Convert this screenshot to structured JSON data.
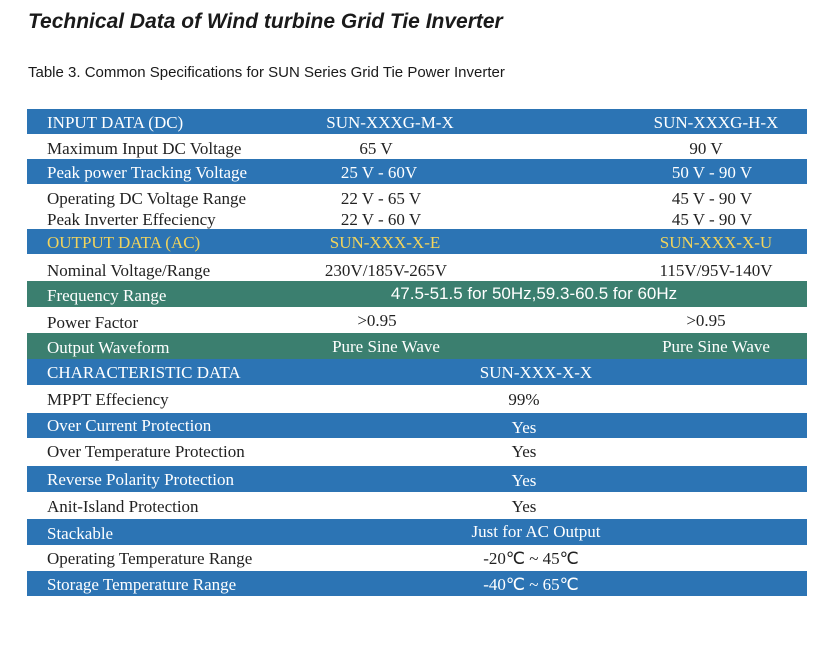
{
  "title": "Technical Data of Wind turbine Grid Tie Inverter",
  "subtitle": "Table 3. Common Specifications for SUN Series Grid Tie Power Inverter",
  "colors": {
    "blue": "#2c74b4",
    "green": "#3b7f6f",
    "yellow_text": "#f2d45c"
  },
  "input": {
    "header": {
      "label": "INPUT  DATA (DC)",
      "col1": "SUN-XXXG-M-X",
      "col2": "SUN-XXXG-H-X"
    },
    "rows": [
      {
        "label": "Maximum Input DC Voltage",
        "col1": "65 V",
        "col2": "90 V"
      },
      {
        "label": "Peak power Tracking Voltage",
        "col1": "25 V - 60V",
        "col2": "50 V - 90 V"
      },
      {
        "label": "Operating  DC Voltage Range",
        "col1": "22 V - 65 V",
        "col2": "45 V - 90 V"
      },
      {
        "label": "Peak Inverter Effeciency",
        "col1": "22 V - 60 V",
        "col2": "45 V - 90 V"
      }
    ]
  },
  "output": {
    "header": {
      "label": "OUTPUT DATA (AC)",
      "col1": "SUN-XXX-X-E",
      "col2": "SUN-XXX-X-U"
    },
    "rows": [
      {
        "label": "Nominal Voltage/Range",
        "col1": "230V/185V-265V",
        "col2": "115V/95V-140V"
      },
      {
        "label": "Frequency Range",
        "value": "47.5-51.5 for 50Hz,59.3-60.5 for 60Hz"
      },
      {
        "label": "Power Factor",
        "col1": ">0.95",
        "col2": ">0.95"
      },
      {
        "label": "Output Waveform",
        "col1": "Pure Sine Wave",
        "col2": "Pure Sine Wave"
      }
    ]
  },
  "characteristic": {
    "header": {
      "label": "CHARACTERISTIC DATA",
      "col": "SUN-XXX-X-X"
    },
    "rows": [
      {
        "label": "MPPT Effeciency",
        "value": "99%"
      },
      {
        "label": "Over Current Protection",
        "value": "Yes"
      },
      {
        "label": "Over Temperature Protection",
        "value": "Yes"
      },
      {
        "label": "Reverse Polarity Protection",
        "value": "Yes"
      },
      {
        "label": "Anit-Island Protection",
        "value": "Yes"
      },
      {
        "label": "Stackable",
        "value": "Just for AC Output"
      },
      {
        "label": "Operating Temperature Range",
        "value": "-20℃ ~ 45℃"
      },
      {
        "label": "Storage Temperature Range",
        "value": "-40℃ ~ 65℃"
      }
    ]
  }
}
